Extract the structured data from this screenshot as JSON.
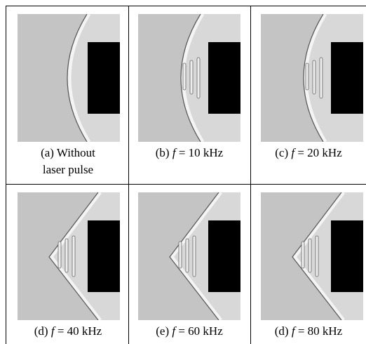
{
  "panels": [
    {
      "caption": [
        "(a) Without",
        "laser pulse"
      ]
    },
    {
      "label": "(b)",
      "symbol": "f",
      "text": "= 10 kHz"
    },
    {
      "label": "(c)",
      "symbol": "f",
      "text": "= 20 kHz"
    },
    {
      "label": "(d)",
      "symbol": "f",
      "text": "= 40 kHz"
    },
    {
      "label": "(e)",
      "symbol": "f",
      "text": "= 60 kHz"
    },
    {
      "label": "(d)",
      "symbol": "f",
      "text": "= 80 kHz"
    }
  ]
}
